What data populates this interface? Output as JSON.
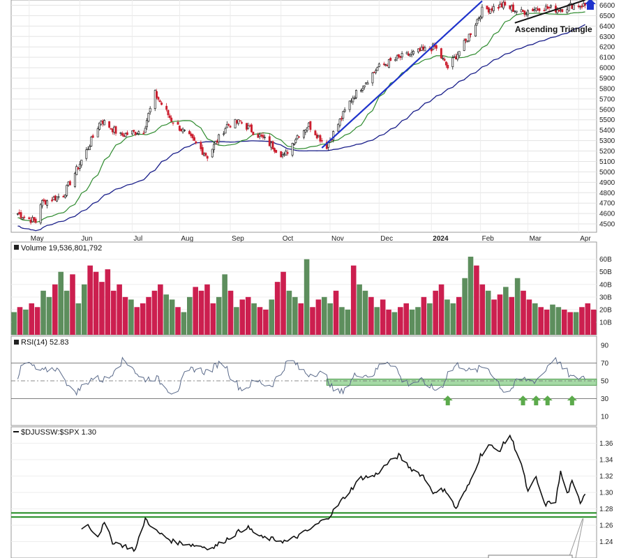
{
  "chart_data": [
    {
      "type": "candlestick",
      "title": "",
      "y_ticks": [
        4500,
        4600,
        4700,
        4800,
        4900,
        5000,
        5100,
        5200,
        5300,
        5400,
        5500,
        5600,
        5700,
        5800,
        5900,
        6000,
        6100,
        6200,
        6300,
        6400,
        6500,
        6600
      ],
      "ylim": [
        4420,
        6650
      ],
      "x_month_labels": [
        "May",
        "Jun",
        "Jul",
        "Aug",
        "Sep",
        "Oct",
        "Nov",
        "Dec",
        "2024",
        "Feb",
        "Mar",
        "Apr"
      ],
      "trend_anchor_points": [
        {
          "date": "2023-04-24",
          "close": 4600
        },
        {
          "date": "2023-05-05",
          "close": 4520
        },
        {
          "date": "2023-05-08",
          "close": 4700
        },
        {
          "date": "2023-05-22",
          "close": 4780
        },
        {
          "date": "2023-06-05",
          "close": 5200
        },
        {
          "date": "2023-06-14",
          "close": 5500
        },
        {
          "date": "2023-06-26",
          "close": 5350
        },
        {
          "date": "2023-07-10",
          "close": 5400
        },
        {
          "date": "2023-07-17",
          "close": 5750
        },
        {
          "date": "2023-07-27",
          "close": 5500
        },
        {
          "date": "2023-08-09",
          "close": 5300
        },
        {
          "date": "2023-08-18",
          "close": 5150
        },
        {
          "date": "2023-08-30",
          "close": 5450
        },
        {
          "date": "2023-09-07",
          "close": 5480
        },
        {
          "date": "2023-09-21",
          "close": 5320
        },
        {
          "date": "2023-10-04",
          "close": 5150
        },
        {
          "date": "2023-10-12",
          "close": 5350
        },
        {
          "date": "2023-10-19",
          "close": 5450
        },
        {
          "date": "2023-10-30",
          "close": 5250
        },
        {
          "date": "2023-11-14",
          "close": 5700
        },
        {
          "date": "2023-11-30",
          "close": 6000
        },
        {
          "date": "2023-12-14",
          "close": 6100
        },
        {
          "date": "2024-01-04",
          "close": 6200
        },
        {
          "date": "2024-01-12",
          "close": 6000
        },
        {
          "date": "2024-01-23",
          "close": 6250
        },
        {
          "date": "2024-02-02",
          "close": 6550
        },
        {
          "date": "2024-02-15",
          "close": 6600
        },
        {
          "date": "2024-02-26",
          "close": 6530
        },
        {
          "date": "2024-03-08",
          "close": 6580
        },
        {
          "date": "2024-03-20",
          "close": 6560
        },
        {
          "date": "2024-03-28",
          "close": 6600
        }
      ],
      "moving_averages": [
        {
          "color": "#2e8b2e"
        },
        {
          "color": "#1a1f8a"
        }
      ],
      "annotations": [
        {
          "text": "Ascending Triangle"
        }
      ],
      "colors": {
        "up": "#1a1a1a",
        "down": "#cc1f2f",
        "trendline": "#1f33cc",
        "arrow": "#1f33cc"
      }
    },
    {
      "type": "bar",
      "legend": "Volume 19,536,801,792",
      "y_ticks": [
        "10B",
        "20B",
        "30B",
        "40B",
        "50B",
        "60B"
      ],
      "ylim": [
        0,
        67
      ],
      "values_billions_sample": [
        18,
        22,
        20,
        25,
        22,
        35,
        30,
        40,
        50,
        35,
        48,
        25,
        40,
        55,
        50,
        42,
        52,
        35,
        40,
        30,
        28,
        22,
        25,
        30,
        35,
        40,
        32,
        28,
        22,
        18,
        30,
        38,
        35,
        40,
        25,
        30,
        48,
        35,
        22,
        28,
        30,
        25,
        22,
        20,
        28,
        42,
        50,
        35,
        30,
        25,
        60,
        22,
        28,
        30,
        25,
        35,
        22,
        20,
        55,
        40,
        35,
        30,
        22,
        28,
        20,
        18,
        22,
        25,
        20,
        22,
        30,
        25,
        35,
        40,
        28,
        25,
        30,
        45,
        62,
        55,
        40,
        35,
        28,
        32,
        38,
        30,
        45,
        35,
        28,
        25,
        22,
        20,
        24,
        22,
        20,
        18,
        18,
        22,
        25,
        20
      ],
      "colors": {
        "up": "#5d8e5d",
        "down": "#cc1f4f"
      }
    },
    {
      "type": "line",
      "legend": "RSI(14) 52.83",
      "y_ticks": [
        10,
        30,
        50,
        70,
        90
      ],
      "ylim": [
        0,
        100
      ],
      "overbought": 70,
      "oversold": 30,
      "midline": 50,
      "support_band": [
        45,
        52
      ],
      "support_arrows_dates": [
        "2024-01-12",
        "2024-02-27",
        "2024-03-06",
        "2024-03-13",
        "2024-03-28"
      ],
      "colors": {
        "line": "#5a6a8a",
        "band": "#8fcf8f",
        "arrow": "#5caa4c",
        "fill_over": "#6c8c9e"
      }
    },
    {
      "type": "line",
      "legend": "$DJUSSW:$SPX 1.30",
      "y_ticks": [
        1.24,
        1.26,
        1.28,
        1.3,
        1.32,
        1.34,
        1.36
      ],
      "ylim": [
        1.22,
        1.38
      ],
      "support_lines": [
        1.275,
        1.27
      ],
      "anchor_points": [
        {
          "date": "2023-06-02",
          "value": 1.255
        },
        {
          "date": "2023-06-05",
          "value": 1.262
        },
        {
          "date": "2023-06-12",
          "value": 1.247
        },
        {
          "date": "2023-06-16",
          "value": 1.262
        },
        {
          "date": "2023-06-21",
          "value": 1.24
        },
        {
          "date": "2023-07-05",
          "value": 1.23
        },
        {
          "date": "2023-07-11",
          "value": 1.268
        },
        {
          "date": "2023-07-18",
          "value": 1.252
        },
        {
          "date": "2023-07-28",
          "value": 1.24
        },
        {
          "date": "2023-08-21",
          "value": 1.232
        },
        {
          "date": "2023-09-11",
          "value": 1.258
        },
        {
          "date": "2023-09-20",
          "value": 1.245
        },
        {
          "date": "2023-10-06",
          "value": 1.24
        },
        {
          "date": "2023-10-20",
          "value": 1.255
        },
        {
          "date": "2023-10-27",
          "value": 1.265
        },
        {
          "date": "2023-11-01",
          "value": 1.272
        },
        {
          "date": "2023-11-08",
          "value": 1.29
        },
        {
          "date": "2023-11-20",
          "value": 1.318
        },
        {
          "date": "2023-11-28",
          "value": 1.32
        },
        {
          "date": "2023-12-06",
          "value": 1.335
        },
        {
          "date": "2023-12-13",
          "value": 1.345
        },
        {
          "date": "2023-12-20",
          "value": 1.33
        },
        {
          "date": "2023-12-28",
          "value": 1.32
        },
        {
          "date": "2024-01-04",
          "value": 1.298
        },
        {
          "date": "2024-01-10",
          "value": 1.305
        },
        {
          "date": "2024-01-17",
          "value": 1.28
        },
        {
          "date": "2024-01-25",
          "value": 1.31
        },
        {
          "date": "2024-02-01",
          "value": 1.345
        },
        {
          "date": "2024-02-06",
          "value": 1.358
        },
        {
          "date": "2024-02-12",
          "value": 1.35
        },
        {
          "date": "2024-02-19",
          "value": 1.37
        },
        {
          "date": "2024-02-26",
          "value": 1.335
        },
        {
          "date": "2024-03-01",
          "value": 1.3
        },
        {
          "date": "2024-03-06",
          "value": 1.318
        },
        {
          "date": "2024-03-11",
          "value": 1.285
        },
        {
          "date": "2024-03-18",
          "value": 1.29
        },
        {
          "date": "2024-03-21",
          "value": 1.325
        },
        {
          "date": "2024-03-25",
          "value": 1.298
        },
        {
          "date": "2024-03-28",
          "value": 1.312
        },
        {
          "date": "2024-04-02",
          "value": 1.288
        },
        {
          "date": "2024-04-05",
          "value": 1.3
        }
      ],
      "colors": {
        "line": "#111111",
        "support": "#1e8a1e"
      }
    }
  ]
}
